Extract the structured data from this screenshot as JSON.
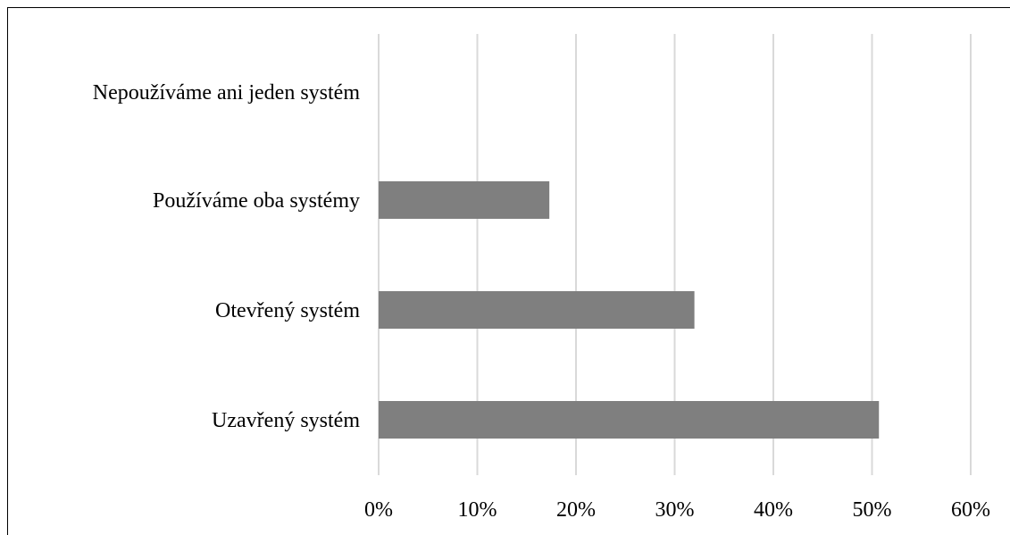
{
  "chart_data": {
    "type": "bar",
    "orientation": "horizontal",
    "categories": [
      "Nepoužíváme ani jeden systém",
      "Používáme oba systémy",
      "Otevřený systém",
      "Uzavřený systém"
    ],
    "values": [
      0,
      17.3,
      32,
      50.7
    ],
    "xlim": [
      0,
      60
    ],
    "xticks": [
      0,
      10,
      20,
      30,
      40,
      50,
      60
    ],
    "tick_labels": [
      "0%",
      "10%",
      "20%",
      "30%",
      "40%",
      "50%",
      "60%"
    ],
    "title": "",
    "xlabel": "",
    "ylabel": "",
    "grid": "vertical",
    "bar_color": "#7f7f7f",
    "grid_color": "#d9d9d9"
  }
}
